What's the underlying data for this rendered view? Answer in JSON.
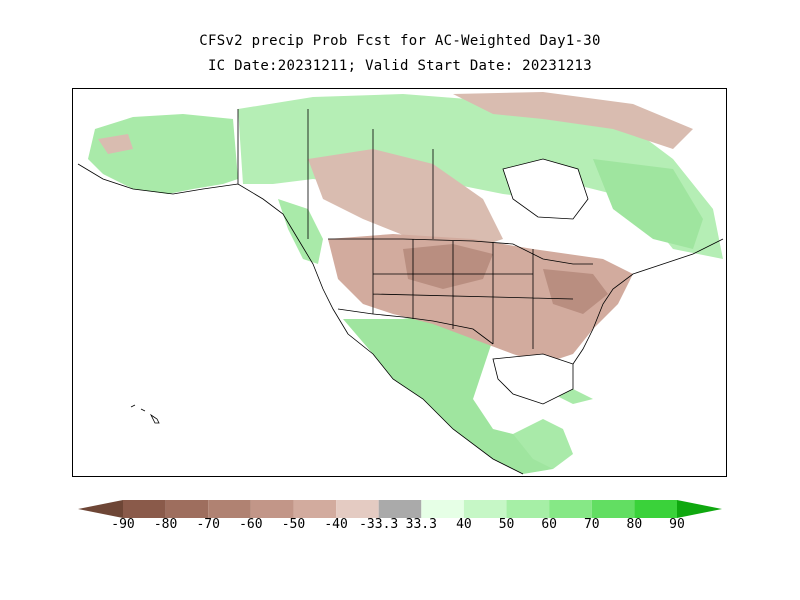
{
  "title_line1": "CFSv2 precip Prob Fcst for AC-Weighted Day1-30",
  "title_line2": "IC Date:20231211; Valid Start Date: 20231213",
  "colorbar": {
    "labels": [
      "-90",
      "-80",
      "-70",
      "-60",
      "-50",
      "-40",
      "-33.3",
      "33.3",
      "40",
      "50",
      "60",
      "70",
      "80",
      "90"
    ],
    "colors": [
      "#8a5a4a",
      "#9e6e5e",
      "#b08272",
      "#c29688",
      "#d2ab9e",
      "#e4cbc2",
      "#aaaaaa",
      "#e6ffe6",
      "#c6f7c6",
      "#a6efa6",
      "#86e886",
      "#62de62",
      "#3ad23a",
      "#14b814"
    ],
    "left_arrow_color": "#6e4636",
    "right_arrow_color": "#0fa80f"
  },
  "map_colors": {
    "land": "#d6b6aa",
    "land_dark": "#b98e80",
    "green_light": "#c2efc2",
    "green": "#9fe59f",
    "near_normal": "#ffffff",
    "outline": "#000000"
  }
}
